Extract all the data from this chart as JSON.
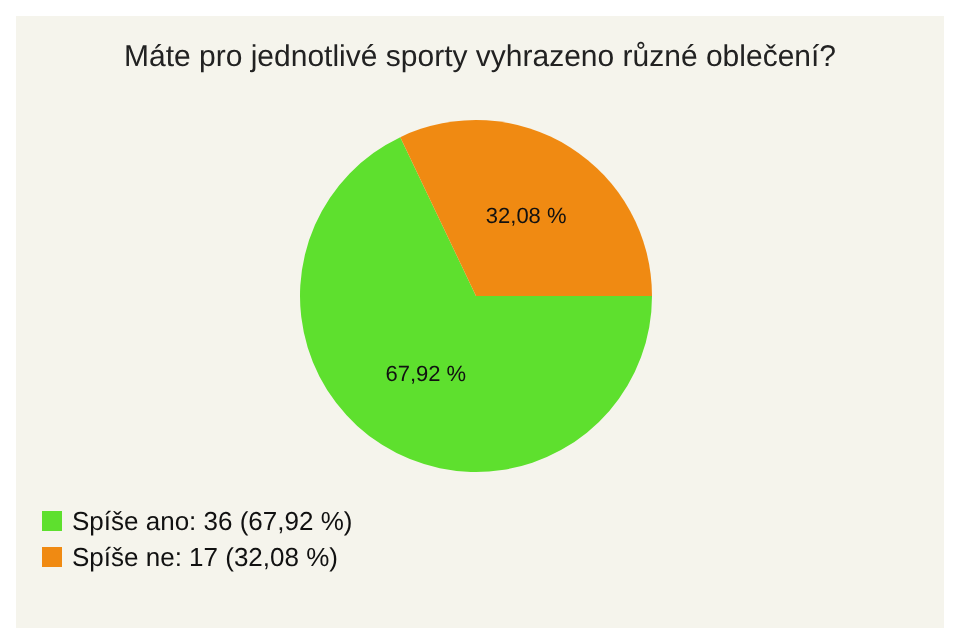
{
  "chart_data": {
    "type": "pie",
    "title": "Máte pro jednotlivé sporty vyhrazeno různé oblečení?",
    "categories": [
      "Spíše ano: 36 (67,92 %)",
      "Spíše ne: 17 (32,08 %)"
    ],
    "values": [
      67.92,
      32.08
    ],
    "colors": [
      "#5ee02e",
      "#f08a12"
    ],
    "value_labels": [
      "67,92 %",
      "32,08 %"
    ],
    "legend": "bottom left"
  }
}
